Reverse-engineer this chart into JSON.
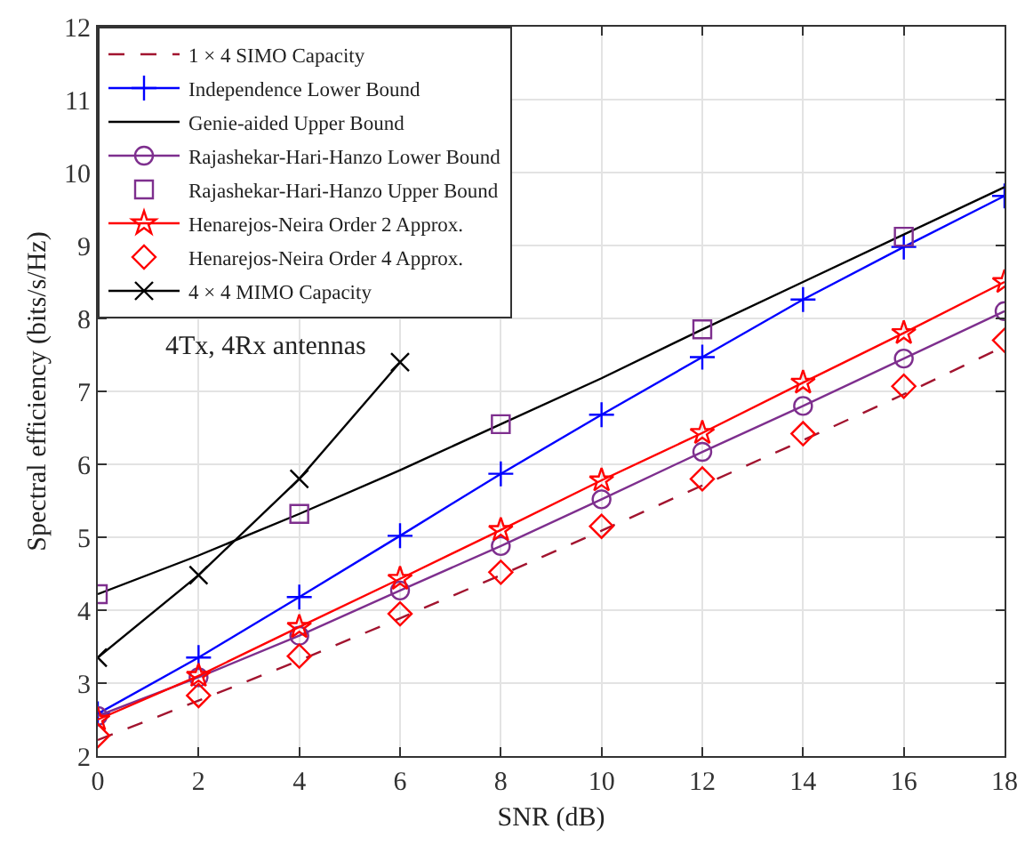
{
  "chart_data": {
    "type": "line",
    "xlabel": "SNR (dB)",
    "ylabel": "Spectral efficiency (bits/s/Hz)",
    "x": [
      0,
      2,
      4,
      6,
      8,
      10,
      12,
      14,
      16,
      18
    ],
    "xlim": [
      0,
      18
    ],
    "xticks": [
      0,
      2,
      4,
      6,
      8,
      10,
      12,
      14,
      16,
      18
    ],
    "ylim": [
      2,
      12
    ],
    "yticks": [
      2,
      3,
      4,
      5,
      6,
      7,
      8,
      9,
      10,
      11,
      12
    ],
    "grid": true,
    "legend": "top left",
    "annotations": [
      "4Tx, 4Rx antennas"
    ],
    "series": [
      {
        "name": "1 × 4 SIMO Capacity",
        "color": "#a2142f",
        "marker": "none",
        "line_style": "dashed",
        "values": [
          2.22,
          2.76,
          3.31,
          3.89,
          4.48,
          5.09,
          5.71,
          6.33,
          6.96,
          7.62
        ]
      },
      {
        "name": "Independence Lower Bound",
        "color": "#0000ff",
        "marker": "cross",
        "line_style": "solid",
        "values": [
          2.58,
          3.35,
          4.18,
          5.02,
          5.87,
          6.68,
          7.47,
          8.26,
          8.98,
          9.68
        ]
      },
      {
        "name": "Genie-aided Upper Bound",
        "color": "#000000",
        "marker": "none",
        "line_style": "solid",
        "values": [
          4.22,
          4.75,
          5.32,
          5.92,
          6.55,
          7.18,
          7.85,
          8.5,
          9.15,
          9.8
        ]
      },
      {
        "name": "Rajashekar-Hari-Hanzo Lower Bound",
        "color": "#7e2f8e",
        "marker": "circle",
        "line_style": "solid",
        "values": [
          2.55,
          3.08,
          3.65,
          4.27,
          4.88,
          5.52,
          6.17,
          6.8,
          7.45,
          8.1
        ]
      },
      {
        "name": "Rajashekar-Hari-Hanzo Upper Bound",
        "type": "scatter",
        "color": "#7e2f8e",
        "marker": "square",
        "x": [
          0,
          4,
          8,
          12,
          16
        ],
        "values": [
          4.22,
          5.32,
          6.55,
          7.85,
          9.12
        ]
      },
      {
        "name": "Henarejos-Neira Order 2 Approx.",
        "color": "#ff0000",
        "marker": "star",
        "line_style": "solid",
        "values": [
          2.5,
          3.1,
          3.77,
          4.43,
          5.1,
          5.78,
          6.43,
          7.12,
          7.8,
          8.5
        ]
      },
      {
        "name": "Henarejos-Neira Order 4 Approx.",
        "type": "scatter",
        "color": "#ff0000",
        "marker": "diamond",
        "values": [
          2.28,
          2.83,
          3.37,
          3.95,
          4.52,
          5.15,
          5.8,
          6.42,
          7.07,
          7.7
        ]
      },
      {
        "name": "4 × 4 MIMO Capacity",
        "color": "#000000",
        "marker": "x",
        "line_style": "solid",
        "x": [
          0,
          2,
          4,
          6
        ],
        "values": [
          3.35,
          4.48,
          5.8,
          7.4
        ]
      }
    ]
  }
}
